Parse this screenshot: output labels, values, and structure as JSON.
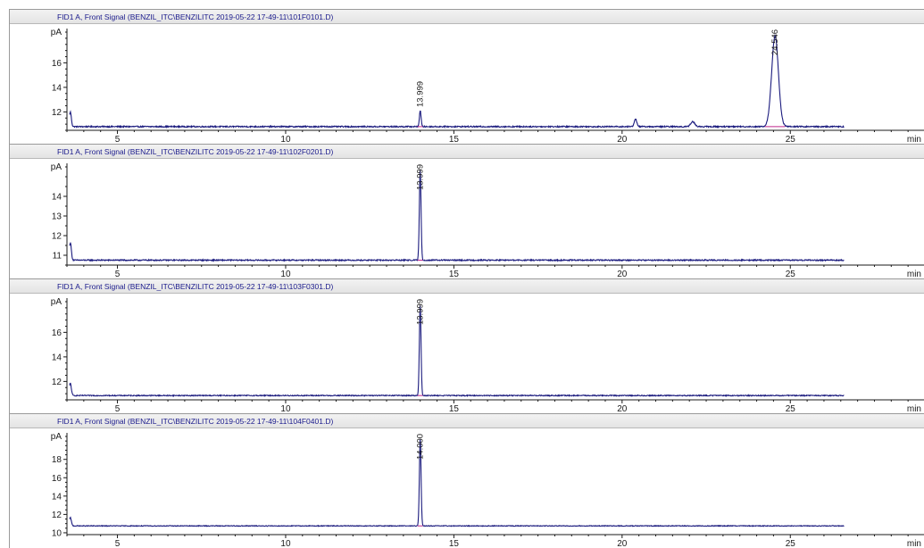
{
  "colors": {
    "trace": "#1b1b7e",
    "integration_marker": "#c0288c",
    "title_text": "#1a1a8c",
    "axis": "#1a1a1a"
  },
  "chart_data": [
    {
      "type": "line",
      "title": "FID1 A, Front Signal (BENZIL_ITC\\BENZILITC 2019-05-22 17-49-11\\101F0101.D)",
      "ylabel": "pA",
      "xlabel": "min",
      "xlim": [
        3.5,
        29
      ],
      "ylim": [
        10.5,
        18.5
      ],
      "yticks": [
        12,
        14,
        16
      ],
      "xticks": [
        5,
        10,
        15,
        20,
        25
      ],
      "baseline": 10.8,
      "end_time": 26.6,
      "noise": 0.05,
      "peaks": [
        {
          "t": 3.6,
          "h": 1.2,
          "w": 0.03
        },
        {
          "t": 14.0,
          "h": 1.3,
          "w": 0.025
        },
        {
          "t": 20.4,
          "h": 0.6,
          "w": 0.04
        },
        {
          "t": 22.1,
          "h": 0.4,
          "w": 0.06
        },
        {
          "t": 24.546,
          "h": 7.4,
          "w": 0.1
        }
      ],
      "annotations": [
        {
          "t": 13.999,
          "label": "13.999"
        },
        {
          "t": 24.546,
          "label": "24.546"
        }
      ]
    },
    {
      "type": "line",
      "title": "FID1 A, Front Signal (BENZIL_ITC\\BENZILITC 2019-05-22 17-49-11\\102F0201.D)",
      "ylabel": "pA",
      "xlabel": "min",
      "xlim": [
        3.5,
        29
      ],
      "ylim": [
        10.5,
        15.5
      ],
      "yticks": [
        11,
        12,
        13,
        14
      ],
      "xticks": [
        5,
        10,
        15,
        20,
        25
      ],
      "baseline": 10.75,
      "end_time": 26.6,
      "noise": 0.03,
      "peaks": [
        {
          "t": 3.6,
          "h": 0.9,
          "w": 0.03
        },
        {
          "t": 13.999,
          "h": 4.6,
          "w": 0.025
        }
      ],
      "annotations": [
        {
          "t": 13.999,
          "label": "13.999"
        }
      ]
    },
    {
      "type": "line",
      "title": "FID1 A, Front Signal (BENZIL_ITC\\BENZILITC 2019-05-22 17-49-11\\103F0301.D)",
      "ylabel": "pA",
      "xlabel": "min",
      "xlim": [
        3.5,
        29
      ],
      "ylim": [
        10.5,
        18.5
      ],
      "yticks": [
        12,
        14,
        16
      ],
      "xticks": [
        5,
        10,
        15,
        20,
        25
      ],
      "baseline": 10.85,
      "end_time": 26.6,
      "noise": 0.04,
      "peaks": [
        {
          "t": 3.6,
          "h": 1.0,
          "w": 0.03
        },
        {
          "t": 13.999,
          "h": 7.4,
          "w": 0.025
        }
      ],
      "annotations": [
        {
          "t": 13.999,
          "label": "13.999"
        }
      ]
    },
    {
      "type": "line",
      "title": "FID1 A, Front Signal (BENZIL_ITC\\BENZILITC 2019-05-22 17-49-11\\104F0401.D)",
      "ylabel": "pA",
      "xlabel": "min",
      "xlim": [
        3.5,
        29
      ],
      "ylim": [
        9.8,
        20.5
      ],
      "yticks": [
        10,
        12,
        14,
        16,
        18
      ],
      "xticks": [
        5,
        10,
        15,
        20,
        25
      ],
      "baseline": 10.75,
      "end_time": 26.6,
      "noise": 0.04,
      "peaks": [
        {
          "t": 3.6,
          "h": 0.9,
          "w": 0.03
        },
        {
          "t": 14.0,
          "h": 9.5,
          "w": 0.025
        }
      ],
      "annotations": [
        {
          "t": 14.0,
          "label": "14.000"
        }
      ]
    }
  ]
}
